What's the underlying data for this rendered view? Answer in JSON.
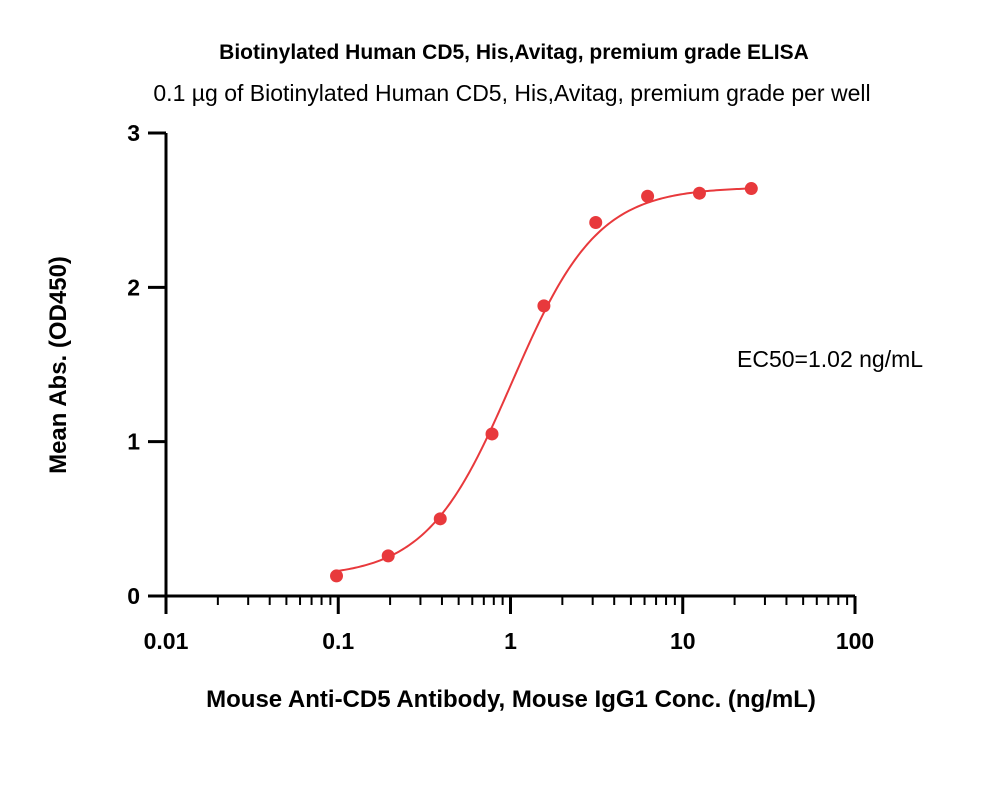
{
  "chart_data": {
    "type": "scatter",
    "title": "Biotinylated Human CD5, His,Avitag, premium grade ELISA",
    "subtitle": "0.1 µg of Biotinylated Human CD5, His,Avitag, premium grade per well",
    "xlabel": "Mouse Anti-CD5 Antibody, Mouse IgG1 Conc. (ng/mL)",
    "ylabel": "Mean Abs. (OD450)",
    "x_scale": "log",
    "xlim": [
      0.01,
      100
    ],
    "ylim": [
      0,
      3
    ],
    "x_ticks": [
      {
        "value": 0.01,
        "label": "0.01"
      },
      {
        "value": 0.1,
        "label": "0.1"
      },
      {
        "value": 1,
        "label": "1"
      },
      {
        "value": 10,
        "label": "10"
      },
      {
        "value": 100,
        "label": "100"
      }
    ],
    "y_ticks": [
      {
        "value": 0,
        "label": "0"
      },
      {
        "value": 1,
        "label": "1"
      },
      {
        "value": 2,
        "label": "2"
      },
      {
        "value": 3,
        "label": "3"
      }
    ],
    "grid": false,
    "series": [
      {
        "color": "#e8393c",
        "x": [
          0.0977,
          0.195,
          0.391,
          0.781,
          1.563,
          3.125,
          6.25,
          12.5,
          25
        ],
        "y": [
          0.13,
          0.26,
          0.5,
          1.05,
          1.88,
          2.42,
          2.59,
          2.61,
          2.64
        ],
        "fit": "4-parameter logistic"
      }
    ],
    "annotations": [
      {
        "text": "EC50=1.02 ng/mL"
      }
    ]
  }
}
